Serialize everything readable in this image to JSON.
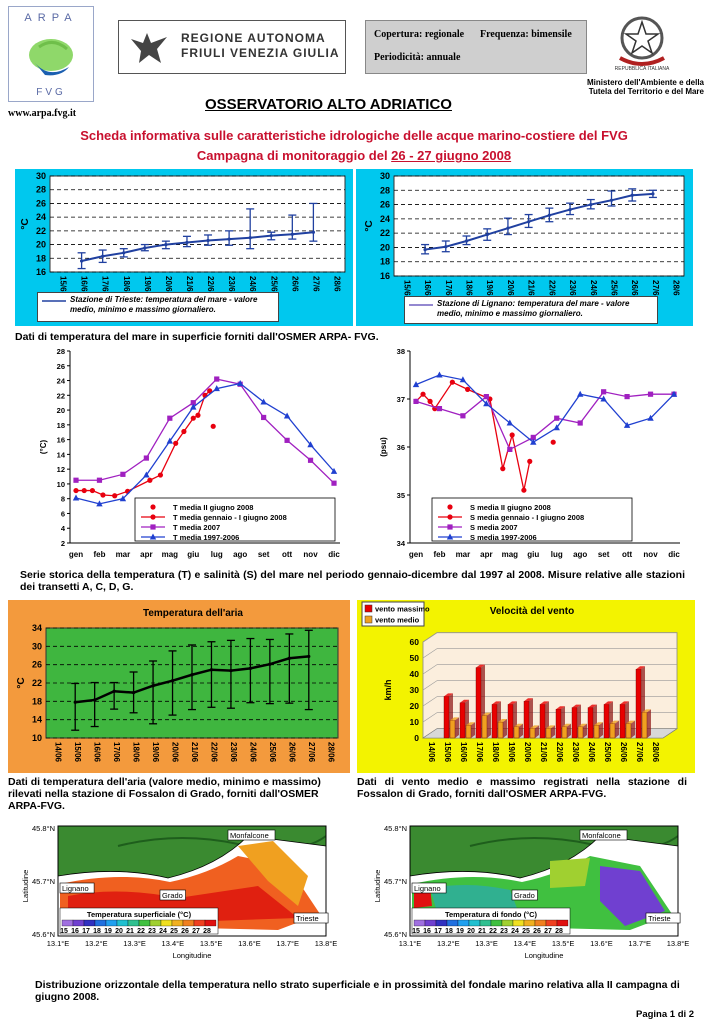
{
  "header": {
    "arpa_logo_text": "ARPA",
    "arpa_logo_sub": "FVG",
    "arpa_url": "www.arpa.fvg.it",
    "region_line1": "REGIONE AUTONOMA",
    "region_line2": "FRIULI VENEZIA GIULIA",
    "info_coverage_label": "Copertura: regionale",
    "info_frequency_label": "Frequenza: bimensile",
    "info_periodicity_label": "Periodicità: annuale",
    "ministry_line1": "Ministero dell'Ambiente e della",
    "ministry_line2": "Tutela del Territorio e del Mare",
    "emblem_text": "REPUBBLICA ITALIANA"
  },
  "title": "OSSERVATORIO ALTO ADRIATICO",
  "subtitle_line1": "Scheda informativa sulle caratteristiche idrologiche delle acque marino-costiere del FVG",
  "subtitle_line2_prefix": "Campagna di monitoraggio del ",
  "subtitle_line2_date": "26 - 27 giugno 2008",
  "captions": {
    "sea_temp": "Dati di temperatura del mare in superficie forniti dall'OSMER ARPA- FVG.",
    "series": "Serie storica della temperatura (T) e salinità (S) del mare nel periodo gennaio-dicembre dal 1997 al 2008. Misure relative alle stazioni dei transetti A, C, D, G.",
    "air": "Dati di temperatura dell'aria (valore medio, minimo e massimo) rilevati nella stazione di Fossalon di Grado, forniti dall'OSMER ARPA-FVG.",
    "wind": "Dati di vento medio e massimo registrati nella stazione di Fossalon di Grado, forniti dall'OSMER ARPA-FVG.",
    "maps": "Distribuzione orizzontale della temperatura nello strato superficiale e in prossimità del fondale marino relativa alla II campagna di giugno 2008."
  },
  "footer": "Pagina 1 di 2",
  "chart_data": [
    {
      "type": "line",
      "id": "trieste",
      "x": [
        "15/6",
        "16/6",
        "17/6",
        "18/6",
        "19/6",
        "20/6",
        "21/6",
        "22/6",
        "23/6",
        "24/6",
        "25/6",
        "26/6",
        "27/6",
        "28/6"
      ],
      "series": [
        {
          "name": "Stazione di Trieste: temperatura del mare - valore medio, minimo e massimo giornaliero.",
          "mean": [
            null,
            17.6,
            18.3,
            18.8,
            19.5,
            20.0,
            20.3,
            20.6,
            20.8,
            21.0,
            21.3,
            21.5,
            21.8,
            null
          ],
          "min": [
            null,
            16.5,
            17.4,
            18.2,
            19.1,
            19.4,
            19.7,
            19.9,
            19.9,
            19.4,
            20.7,
            20.8,
            20.5,
            null
          ],
          "max": [
            null,
            18.8,
            19.2,
            19.4,
            20.0,
            20.5,
            21.2,
            21.4,
            22.0,
            25.2,
            21.8,
            24.3,
            26.0,
            null
          ]
        }
      ],
      "ylabel": "°C",
      "ylim": [
        16,
        30
      ],
      "yticks": [
        16,
        18,
        20,
        22,
        24,
        26,
        28,
        30
      ],
      "color": "#2040a0"
    },
    {
      "type": "line",
      "id": "lignano",
      "x": [
        "15/6",
        "16/6",
        "17/6",
        "18/6",
        "19/6",
        "20/6",
        "21/6",
        "22/6",
        "23/6",
        "24/6",
        "25/6",
        "26/6",
        "27/6",
        "28/6"
      ],
      "series": [
        {
          "name": "Stazione di Lignano: temperatura del mare - valore medio, minimo e massimo giornaliero.",
          "mean": [
            null,
            19.7,
            20.1,
            20.9,
            21.8,
            22.7,
            23.6,
            24.5,
            25.3,
            26.0,
            26.6,
            27.3,
            27.5,
            null
          ],
          "min": [
            null,
            19.1,
            19.4,
            20.4,
            21.0,
            21.8,
            22.8,
            23.6,
            24.6,
            25.4,
            25.8,
            26.5,
            27.0,
            null
          ],
          "max": [
            null,
            20.4,
            20.9,
            21.6,
            22.6,
            24.1,
            24.6,
            25.5,
            26.2,
            26.7,
            27.9,
            28.2,
            28.0,
            null
          ]
        }
      ],
      "ylabel": "°C",
      "ylim": [
        16,
        30
      ],
      "yticks": [
        16,
        18,
        20,
        22,
        24,
        26,
        28,
        30
      ],
      "color": "#7060c0"
    },
    {
      "type": "line",
      "id": "temp_series",
      "categories": [
        "gen",
        "feb",
        "mar",
        "apr",
        "mag",
        "giu",
        "lug",
        "ago",
        "set",
        "ott",
        "nov",
        "dic"
      ],
      "ylabel": "(°C)",
      "ylim": [
        2,
        28
      ],
      "yticks": [
        2,
        4,
        6,
        8,
        10,
        12,
        14,
        16,
        18,
        20,
        22,
        24,
        26,
        28
      ],
      "series": [
        {
          "name": "T media II giugno 2008",
          "color": "#e8000f",
          "marker": "circle",
          "line": false,
          "values": [
            null,
            null,
            null,
            null,
            null,
            [
              5.85,
              17.8
            ],
            null,
            null,
            null,
            null,
            null,
            null
          ]
        },
        {
          "name": "T media gennaio - I giugno 2008",
          "color": "#e8000f",
          "marker": "circle",
          "line": true,
          "points": [
            [
              0.0,
              9.1
            ],
            [
              0.35,
              9.1
            ],
            [
              0.7,
              9.1
            ],
            [
              1.15,
              8.5
            ],
            [
              1.65,
              8.4
            ],
            [
              2.2,
              9.0
            ],
            [
              3.15,
              10.5
            ],
            [
              3.6,
              11.2
            ],
            [
              4.25,
              15.5
            ],
            [
              4.6,
              17.1
            ],
            [
              5.0,
              18.9
            ],
            [
              5.2,
              19.3
            ],
            [
              5.5,
              22.0
            ],
            [
              5.7,
              22.6
            ]
          ]
        },
        {
          "name": "T media 2007",
          "color": "#a020c0",
          "marker": "square",
          "line": true,
          "values": [
            10.5,
            10.5,
            11.3,
            13.5,
            18.9,
            21.0,
            24.2,
            23.5,
            19.0,
            15.9,
            13.2,
            10.1
          ]
        },
        {
          "name": "T media 1997-2006",
          "color": "#2040d0",
          "marker": "triangle",
          "line": true,
          "values": [
            8.1,
            7.3,
            8.0,
            11.2,
            15.8,
            20.4,
            22.9,
            23.6,
            21.1,
            19.2,
            15.3,
            11.7
          ]
        }
      ]
    },
    {
      "type": "line",
      "id": "sal_series",
      "categories": [
        "gen",
        "feb",
        "mar",
        "apr",
        "mag",
        "giu",
        "lug",
        "ago",
        "set",
        "ott",
        "nov",
        "dic"
      ],
      "ylabel": "(psu)",
      "ylim": [
        34,
        38
      ],
      "yticks": [
        34,
        35,
        36,
        37,
        38
      ],
      "series": [
        {
          "name": "S media II giugno 2008",
          "color": "#e8000f",
          "marker": "circle",
          "line": false,
          "points": [
            [
              5.85,
              36.1
            ]
          ]
        },
        {
          "name": "S media gennaio - I giugno 2008",
          "color": "#e8000f",
          "marker": "circle",
          "line": true,
          "points": [
            [
              0.0,
              36.95
            ],
            [
              0.3,
              37.1
            ],
            [
              0.6,
              36.95
            ],
            [
              0.8,
              36.8
            ],
            [
              1.55,
              37.35
            ],
            [
              2.2,
              37.2
            ],
            [
              3.15,
              37.0
            ],
            [
              3.7,
              35.55
            ],
            [
              4.1,
              36.25
            ],
            [
              4.6,
              35.1
            ],
            [
              4.85,
              35.7
            ]
          ]
        },
        {
          "name": "S media 2007",
          "color": "#a020c0",
          "marker": "square",
          "line": true,
          "values": [
            36.95,
            36.8,
            36.65,
            37.05,
            35.95,
            36.2,
            36.6,
            36.5,
            37.15,
            37.05,
            37.1,
            37.1
          ]
        },
        {
          "name": "S media 1997-2006",
          "color": "#2040d0",
          "marker": "triangle",
          "line": true,
          "values": [
            37.3,
            37.5,
            37.4,
            36.9,
            36.5,
            36.1,
            36.4,
            37.1,
            37.0,
            36.45,
            36.6,
            37.1
          ]
        }
      ]
    },
    {
      "type": "line",
      "id": "air_temp",
      "title": "Temperatura dell'aria",
      "x": [
        "14/06",
        "15/06",
        "16/06",
        "17/06",
        "18/06",
        "19/06",
        "20/06",
        "21/06",
        "22/06",
        "23/06",
        "24/06",
        "25/06",
        "26/06",
        "27/06",
        "28/06"
      ],
      "ylabel": "°C",
      "ylim": [
        10,
        34
      ],
      "yticks": [
        10,
        14,
        18,
        22,
        26,
        30,
        34
      ],
      "series": [
        {
          "name": "mean",
          "mean": [
            null,
            17.8,
            18.3,
            20.2,
            19.9,
            21.4,
            22.5,
            23.8,
            24.9,
            24.7,
            25.2,
            26.1,
            27.4,
            27.8,
            null
          ],
          "min": [
            null,
            11.7,
            12.5,
            16.3,
            15.5,
            13.1,
            15.0,
            16.2,
            16.7,
            16.5,
            17.7,
            17.5,
            17.6,
            16.2,
            null
          ],
          "max": [
            null,
            21.9,
            22.1,
            22.1,
            24.4,
            26.8,
            29.0,
            30.3,
            31.0,
            31.3,
            31.7,
            31.5,
            32.7,
            33.5,
            null
          ]
        }
      ]
    },
    {
      "type": "bar",
      "id": "wind",
      "title": "Velocità del vento",
      "categories": [
        "14/06",
        "15/06",
        "16/06",
        "17/06",
        "18/06",
        "19/06",
        "20/06",
        "21/06",
        "22/06",
        "23/06",
        "24/06",
        "25/06",
        "26/06",
        "27/06",
        "28/06"
      ],
      "ylabel": "km/h",
      "ylim": [
        0,
        60
      ],
      "yticks": [
        0,
        10,
        20,
        30,
        40,
        50,
        60
      ],
      "series": [
        {
          "name": "vento massimo",
          "color": "#e80000",
          "values": [
            null,
            26,
            22,
            44,
            21,
            21,
            23,
            21,
            18,
            19,
            19,
            21,
            21,
            43,
            null
          ]
        },
        {
          "name": "vento medio",
          "color": "#f0a020",
          "values": [
            null,
            11,
            8,
            14,
            10,
            7,
            6,
            6,
            7,
            7,
            8,
            9,
            9,
            16,
            null
          ]
        }
      ]
    }
  ],
  "maps": {
    "surface_title": "Temperatura superficiale (°C)",
    "bottom_title": "Temperatura di fondo (°C)",
    "scale_values": [
      "15",
      "16",
      "17",
      "18",
      "19",
      "20",
      "21",
      "22",
      "23",
      "24",
      "25",
      "26",
      "27",
      "28"
    ],
    "scale_colors": [
      "#a070e0",
      "#7040d0",
      "#3030c0",
      "#2070e0",
      "#20a0f0",
      "#20c0d0",
      "#30c090",
      "#40c040",
      "#a0d030",
      "#f0e020",
      "#f0b020",
      "#f08020",
      "#f04020",
      "#e01010"
    ],
    "lat_labels": [
      "45.8°N",
      "45.7°N",
      "45.6°N"
    ],
    "lon_labels": [
      "13.1°E",
      "13.2°E",
      "13.3°E",
      "13.4°E",
      "13.5°E",
      "13.6°E",
      "13.7°E",
      "13.8°E"
    ],
    "ylabel": "Latitudine",
    "xlabel": "Longitudine",
    "places": [
      "Monfalcone",
      "Lignano",
      "Grado",
      "Trieste"
    ]
  }
}
